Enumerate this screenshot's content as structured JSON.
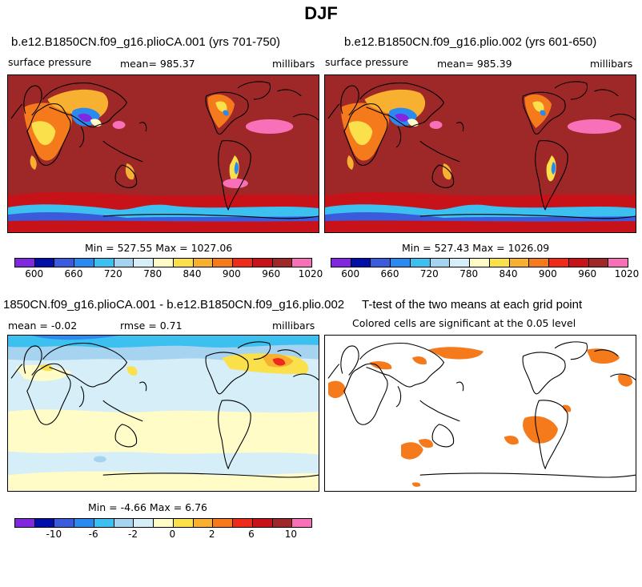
{
  "title": "DJF",
  "palette": [
    "#7f28e0",
    "#000fa8",
    "#3a5cdc",
    "#2a8af0",
    "#3cc0f0",
    "#a6d4f0",
    "#d6eef8",
    "#fffcc8",
    "#fae04a",
    "#f8b030",
    "#f57a1c",
    "#ee2a1a",
    "#c8121a",
    "#9e2828",
    "#f870b8"
  ],
  "panels": [
    {
      "title": "b.e12.B1850CN.f09_g16.plioCA.001 (yrs 701-750)",
      "variable": "surface pressure",
      "mean_text": "mean= 985.37",
      "units": "millibars",
      "stats": "Min = 527.55 Max = 1027.06",
      "ticks": [
        "600",
        "660",
        "720",
        "780",
        "840",
        "900",
        "960",
        "1020"
      ]
    },
    {
      "title": "b.e12.B1850CN.f09_g16.plio.002 (yrs 601-650)",
      "variable": "surface pressure",
      "mean_text": "mean= 985.39",
      "units": "millibars",
      "stats": "Min = 527.43 Max = 1026.09",
      "ticks": [
        "600",
        "660",
        "720",
        "780",
        "840",
        "900",
        "960",
        "1020"
      ]
    },
    {
      "title": "1850CN.f09_g16.plioCA.001 - b.e12.B1850CN.f09_g16.plio.002",
      "mean_text": "mean =   -0.02",
      "rmse_text": "rmse =    0.71",
      "units": "millibars",
      "stats": "Min =  -4.66 Max =   6.76",
      "ticks": [
        "-10",
        "-6",
        "-2",
        "0",
        "2",
        "6",
        "10"
      ]
    },
    {
      "title": "T-test of the two means at each grid point",
      "subtitle": "Colored cells are significant at the 0.05 level",
      "significance_color": "#f57a1c"
    }
  ]
}
